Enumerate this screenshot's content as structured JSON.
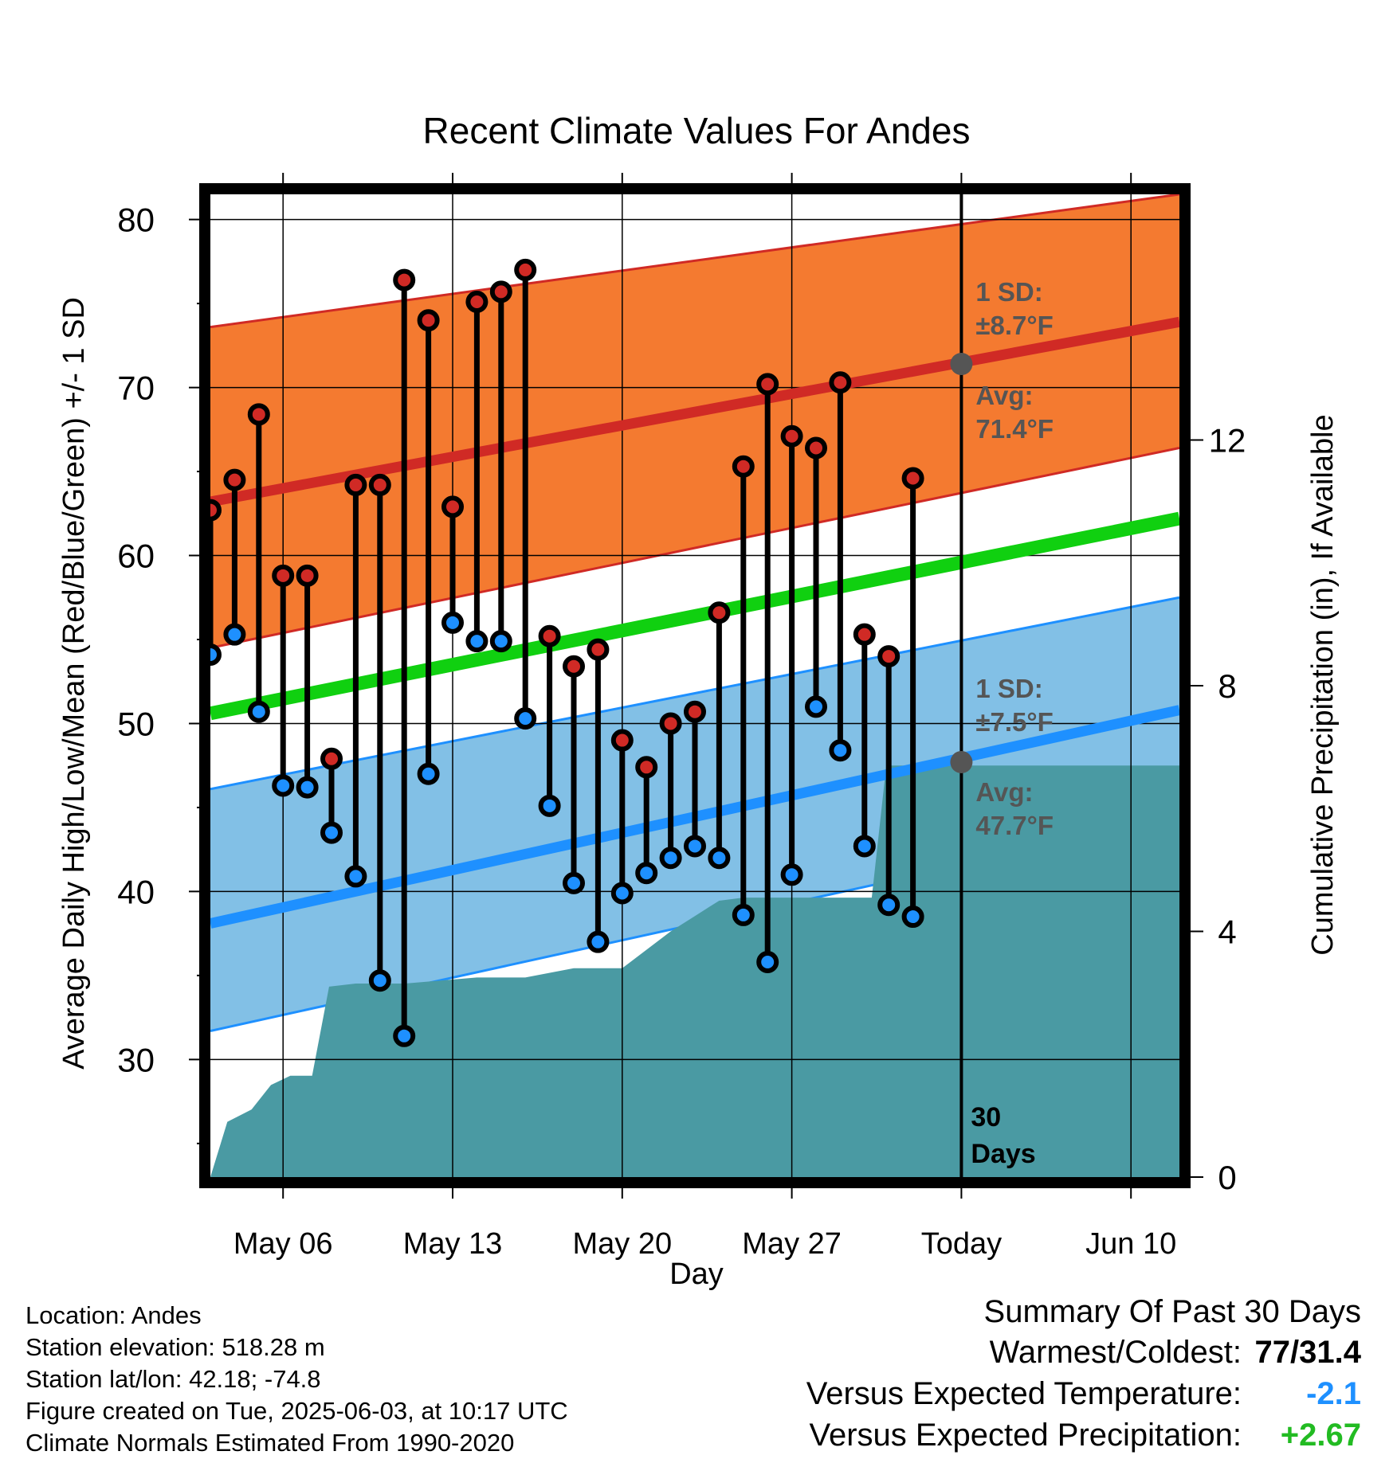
{
  "chart_data": {
    "type": "line",
    "title": "Recent Climate Values For Andes",
    "xlabel": "Day",
    "ylabel": "Average Daily High/Low/Mean (Red/Blue/Green) +/- 1 SD",
    "y2label": "Cumulative Precipitation (in), If Available",
    "ylim": [
      23,
      81.5
    ],
    "y2lim": [
      0,
      16
    ],
    "y_ticks": [
      30,
      40,
      50,
      60,
      70,
      80
    ],
    "y2_ticks": [
      0,
      4,
      8,
      12
    ],
    "x_ticks": [
      "May 06",
      "May 13",
      "May 20",
      "May 27",
      "Today",
      "Jun 10"
    ],
    "x_start_day": 3,
    "x_end_day": 43,
    "x_tick_days": [
      6,
      13,
      20,
      27,
      34,
      41
    ],
    "today_day": 34,
    "days_label": [
      "30",
      "Days"
    ],
    "high_low_series": [
      {
        "date": "May 03",
        "high": 62.7,
        "low": 54.1
      },
      {
        "date": "May 04",
        "high": 64.5,
        "low": 55.3
      },
      {
        "date": "May 05",
        "high": 68.4,
        "low": 50.7
      },
      {
        "date": "May 06",
        "high": 58.8,
        "low": 46.3
      },
      {
        "date": "May 07",
        "high": 58.8,
        "low": 46.2
      },
      {
        "date": "May 08",
        "high": 47.9,
        "low": 43.5
      },
      {
        "date": "May 09",
        "high": 64.2,
        "low": 40.9
      },
      {
        "date": "May 10",
        "high": 64.2,
        "low": 34.7
      },
      {
        "date": "May 11",
        "high": 76.4,
        "low": 31.4
      },
      {
        "date": "May 12",
        "high": 74.0,
        "low": 47.0
      },
      {
        "date": "May 13",
        "high": 62.9,
        "low": 56.0
      },
      {
        "date": "May 14",
        "high": 75.1,
        "low": 54.9
      },
      {
        "date": "May 15",
        "high": 75.7,
        "low": 54.9
      },
      {
        "date": "May 16",
        "high": 77.0,
        "low": 50.3
      },
      {
        "date": "May 17",
        "high": 55.2,
        "low": 45.1
      },
      {
        "date": "May 18",
        "high": 53.4,
        "low": 40.5
      },
      {
        "date": "May 19",
        "high": 54.4,
        "low": 37.0
      },
      {
        "date": "May 20",
        "high": 49.0,
        "low": 39.9
      },
      {
        "date": "May 21",
        "high": 47.4,
        "low": 41.1
      },
      {
        "date": "May 22",
        "high": 50.0,
        "low": 42.0
      },
      {
        "date": "May 23",
        "high": 50.7,
        "low": 42.7
      },
      {
        "date": "May 24",
        "high": 56.6,
        "low": 42.0
      },
      {
        "date": "May 25",
        "high": 65.3,
        "low": 38.6
      },
      {
        "date": "May 26",
        "high": 70.2,
        "low": 35.8
      },
      {
        "date": "May 27",
        "high": 67.1,
        "low": 41.0
      },
      {
        "date": "May 28",
        "high": 66.4,
        "low": 51.0
      },
      {
        "date": "May 29",
        "high": 70.3,
        "low": 48.4
      },
      {
        "date": "May 30",
        "high": 55.3,
        "low": 42.7
      },
      {
        "date": "May 31",
        "high": 54.0,
        "low": 39.2
      },
      {
        "date": "Jun 01",
        "high": 64.6,
        "low": 38.5
      }
    ],
    "normal_high": {
      "start": 63.2,
      "end": 73.9
    },
    "normal_high_band": {
      "lower_start": 54.5,
      "lower_end": 66.4,
      "upper_start": 73.6,
      "upper_end": 81.5
    },
    "normal_mean": {
      "start": 50.6,
      "end": 62.2
    },
    "normal_low": {
      "start": 38.1,
      "end": 50.8
    },
    "normal_low_band": {
      "lower_start": 31.7,
      "lower_end": 44.4,
      "upper_start": 46.1,
      "upper_end": 57.5
    },
    "precip_cumulative": [
      {
        "day": 3,
        "value": 0.0
      },
      {
        "day": 3.7,
        "value": 0.9
      },
      {
        "day": 4.7,
        "value": 1.1
      },
      {
        "day": 5.5,
        "value": 1.5
      },
      {
        "day": 6.3,
        "value": 1.65
      },
      {
        "day": 7.2,
        "value": 1.65
      },
      {
        "day": 7.9,
        "value": 3.1
      },
      {
        "day": 9.0,
        "value": 3.15
      },
      {
        "day": 11.0,
        "value": 3.15
      },
      {
        "day": 14.0,
        "value": 3.25
      },
      {
        "day": 16.0,
        "value": 3.25
      },
      {
        "day": 18.0,
        "value": 3.4
      },
      {
        "day": 20.0,
        "value": 3.4
      },
      {
        "day": 21.0,
        "value": 3.7
      },
      {
        "day": 22.0,
        "value": 4.0
      },
      {
        "day": 23.0,
        "value": 4.25
      },
      {
        "day": 24.0,
        "value": 4.5
      },
      {
        "day": 25.0,
        "value": 4.55
      },
      {
        "day": 30.3,
        "value": 4.55
      },
      {
        "day": 30.9,
        "value": 6.7
      },
      {
        "day": 43.0,
        "value": 6.7
      }
    ],
    "annotations": {
      "high": {
        "sd_label": "1 SD:",
        "sd_value": "±8.7°F",
        "avg_label": "Avg:",
        "avg_value": "71.4°F",
        "avg": 71.4
      },
      "low": {
        "sd_label": "1 SD:",
        "sd_value": "±7.5°F",
        "avg_label": "Avg:",
        "avg_value": "47.7°F",
        "avg": 47.7
      }
    },
    "colors": {
      "high_band": "#f47a30",
      "high_line": "#d02a25",
      "high_band_edge": "#d02a25",
      "mean_line": "#10d010",
      "low_band": "#82c0e6",
      "low_line": "#1e90ff",
      "low_band_edge": "#1e90ff",
      "precip_fill": "#4a9aa3",
      "high_marker": "#d02a25",
      "low_marker": "#1e90ff",
      "annotation": "#555555"
    },
    "grid": true
  },
  "footer": {
    "location": "Location: Andes",
    "elevation": "Station elevation: 518.28 m",
    "latlon": "Station lat/lon: 42.18; -74.8",
    "created": "Figure created on Tue, 2025-06-03, at 10:17 UTC",
    "normals": "Climate Normals Estimated From 1990-2020"
  },
  "summary": {
    "heading": "Summary Of Past 30 Days",
    "warmest_label": "Warmest/Coldest:",
    "warmest_value": "77/31.4",
    "temp_label": "Versus Expected Temperature:",
    "temp_value": "-2.1",
    "temp_color": "#1e90ff",
    "precip_label": "Versus Expected Precipitation:",
    "precip_value": "+2.67",
    "precip_color": "#22bb22"
  }
}
